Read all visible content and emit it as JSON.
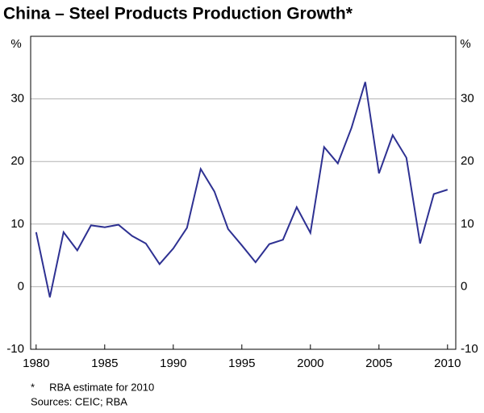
{
  "chart_data": {
    "type": "line",
    "title": "China – Steel Products Production Growth*",
    "y_unit": "%",
    "x": [
      1980,
      1981,
      1982,
      1983,
      1984,
      1985,
      1986,
      1987,
      1988,
      1989,
      1990,
      1991,
      1992,
      1993,
      1994,
      1995,
      1996,
      1997,
      1998,
      1999,
      2000,
      2001,
      2002,
      2003,
      2004,
      2005,
      2006,
      2007,
      2008,
      2009,
      2010
    ],
    "values": [
      8.7,
      -1.7,
      8.7,
      5.8,
      9.8,
      9.5,
      9.9,
      8.1,
      6.9,
      3.6,
      6.1,
      9.4,
      18.8,
      15.2,
      9.2,
      6.6,
      3.9,
      6.8,
      7.5,
      12.7,
      8.6,
      22.3,
      19.7,
      25.4,
      32.7,
      18.1,
      24.2,
      20.6,
      6.9,
      14.8,
      15.5
    ],
    "color": "#2e3192",
    "xlim": [
      1979.6,
      2010.6
    ],
    "xticks": [
      1980,
      1985,
      1990,
      1995,
      2000,
      2005,
      2010
    ],
    "ylim": [
      -10,
      40
    ],
    "yticks": [
      -10,
      0,
      10,
      20,
      30
    ],
    "y2lim": [
      -10,
      40
    ],
    "y2ticks": [
      -10,
      0,
      10,
      20,
      30
    ],
    "grid": true,
    "notes": [
      "*     RBA estimate for 2010",
      "Sources: CEIC; RBA"
    ]
  }
}
